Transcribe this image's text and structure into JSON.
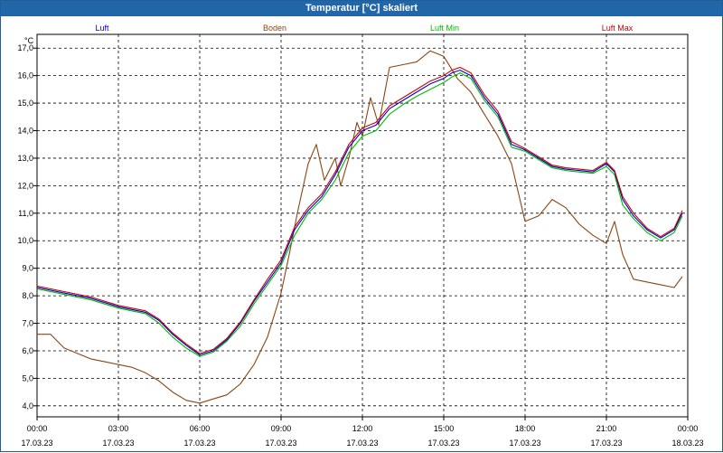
{
  "title": "Temperatur [°C] skaliert",
  "chart_data": {
    "type": "line",
    "title": "Temperatur [°C] skaliert",
    "ylabel": "°C",
    "ylim": [
      3.6,
      17.5
    ],
    "xlim": [
      0,
      24
    ],
    "y_ticks": [
      "4,0",
      "5,0",
      "6,0",
      "7,0",
      "8,0",
      "9,0",
      "10,0",
      "11,0",
      "12,0",
      "13,0",
      "14,0",
      "15,0",
      "16,0",
      "17,0"
    ],
    "x_ticks": [
      {
        "time": "00:00",
        "date": "17.03.23"
      },
      {
        "time": "03:00",
        "date": "17.03.23"
      },
      {
        "time": "06:00",
        "date": "17.03.23"
      },
      {
        "time": "09:00",
        "date": "17.03.23"
      },
      {
        "time": "12:00",
        "date": "17.03.23"
      },
      {
        "time": "15:00",
        "date": "17.03.23"
      },
      {
        "time": "18:00",
        "date": "17.03.23"
      },
      {
        "time": "21:00",
        "date": "17.03.23"
      },
      {
        "time": "00:00",
        "date": "18.03.23"
      }
    ],
    "series": [
      {
        "name": "Luft",
        "color": "#0000cc",
        "x": [
          0,
          1,
          2,
          3,
          4,
          4.5,
          5,
          5.5,
          6,
          6.5,
          7,
          7.5,
          8,
          8.5,
          9,
          9.5,
          10,
          10.5,
          11,
          11.5,
          12,
          12.5,
          13,
          13.5,
          14,
          14.5,
          15,
          15.3,
          15.6,
          16,
          16.5,
          17,
          17.5,
          18,
          18.5,
          19,
          19.5,
          20,
          20.5,
          21,
          21.3,
          21.6,
          22,
          22.5,
          23,
          23.5,
          23.8
        ],
        "y": [
          8.3,
          8.1,
          7.9,
          7.6,
          7.4,
          7.1,
          6.6,
          6.2,
          5.85,
          6.0,
          6.4,
          7.0,
          7.8,
          8.5,
          9.2,
          10.4,
          11.1,
          11.6,
          12.4,
          13.4,
          14.0,
          14.2,
          14.8,
          15.1,
          15.4,
          15.7,
          15.9,
          16.1,
          16.2,
          16.0,
          15.2,
          14.6,
          13.5,
          13.3,
          13.0,
          12.7,
          12.6,
          12.55,
          12.5,
          12.8,
          12.5,
          11.5,
          10.9,
          10.4,
          10.1,
          10.4,
          11.0
        ]
      },
      {
        "name": "Boden",
        "color": "#8b4513",
        "x": [
          0,
          0.5,
          1,
          1.5,
          2,
          2.5,
          3,
          3.5,
          4,
          4.5,
          5,
          5.5,
          6,
          6.5,
          7,
          7.5,
          8,
          8.5,
          9,
          9.3,
          9.6,
          10,
          10.3,
          10.6,
          11,
          11.2,
          11.5,
          11.8,
          12,
          12.3,
          12.6,
          13,
          13.5,
          14,
          14.5,
          15,
          15.5,
          16,
          16.5,
          17,
          17.5,
          18,
          18.5,
          19,
          19.5,
          20,
          20.5,
          21,
          21.3,
          21.6,
          22,
          22.5,
          23,
          23.5,
          23.8
        ],
        "y": [
          6.6,
          6.6,
          6.1,
          5.9,
          5.7,
          5.6,
          5.5,
          5.4,
          5.2,
          4.9,
          4.5,
          4.2,
          4.1,
          4.25,
          4.4,
          4.8,
          5.5,
          6.5,
          8.1,
          9.5,
          11.0,
          12.8,
          13.5,
          12.2,
          13.0,
          12.0,
          13.0,
          14.3,
          13.8,
          15.2,
          14.2,
          16.3,
          16.4,
          16.5,
          16.9,
          16.7,
          15.9,
          15.4,
          14.6,
          13.8,
          12.8,
          10.7,
          10.9,
          11.5,
          11.2,
          10.6,
          10.2,
          9.9,
          10.7,
          9.5,
          8.6,
          8.5,
          8.4,
          8.3,
          8.7
        ]
      },
      {
        "name": "Luft Min",
        "color": "#00bb00",
        "x": [
          0,
          1,
          2,
          3,
          4,
          4.5,
          5,
          5.5,
          6,
          6.5,
          7,
          7.5,
          8,
          8.5,
          9,
          9.5,
          10,
          10.5,
          11,
          11.5,
          12,
          12.5,
          13,
          13.5,
          14,
          14.5,
          15,
          15.3,
          15.6,
          16,
          16.5,
          17,
          17.5,
          18,
          18.5,
          19,
          19.5,
          20,
          20.5,
          21,
          21.3,
          21.6,
          22,
          22.5,
          23,
          23.5,
          23.8
        ],
        "y": [
          8.25,
          8.05,
          7.85,
          7.55,
          7.35,
          7.0,
          6.5,
          6.1,
          5.8,
          5.95,
          6.35,
          6.9,
          7.7,
          8.4,
          9.1,
          10.2,
          11.0,
          11.5,
          12.2,
          13.2,
          13.8,
          14.0,
          14.6,
          14.95,
          15.25,
          15.5,
          15.75,
          15.95,
          16.1,
          15.9,
          15.1,
          14.5,
          13.4,
          13.25,
          12.95,
          12.65,
          12.55,
          12.5,
          12.45,
          12.7,
          12.4,
          11.3,
          10.8,
          10.3,
          10.0,
          10.3,
          10.9
        ]
      },
      {
        "name": "Luft Max",
        "color": "#cc0000",
        "x": [
          0,
          1,
          2,
          3,
          4,
          4.5,
          5,
          5.5,
          6,
          6.5,
          7,
          7.5,
          8,
          8.5,
          9,
          9.5,
          10,
          10.5,
          11,
          11.5,
          12,
          12.5,
          13,
          13.5,
          14,
          14.5,
          15,
          15.3,
          15.6,
          16,
          16.5,
          17,
          17.5,
          18,
          18.5,
          19,
          19.5,
          20,
          20.5,
          21,
          21.3,
          21.6,
          22,
          22.5,
          23,
          23.5,
          23.8
        ],
        "y": [
          8.35,
          8.15,
          7.95,
          7.65,
          7.45,
          7.15,
          6.65,
          6.25,
          5.9,
          6.05,
          6.45,
          7.05,
          7.85,
          8.6,
          9.3,
          10.5,
          11.2,
          11.7,
          12.5,
          13.5,
          14.1,
          14.3,
          14.9,
          15.2,
          15.5,
          15.8,
          16.0,
          16.2,
          16.3,
          16.1,
          15.3,
          14.7,
          13.6,
          13.35,
          13.05,
          12.75,
          12.65,
          12.6,
          12.55,
          12.85,
          12.55,
          11.6,
          11.0,
          10.45,
          10.15,
          10.45,
          11.1
        ]
      }
    ]
  }
}
